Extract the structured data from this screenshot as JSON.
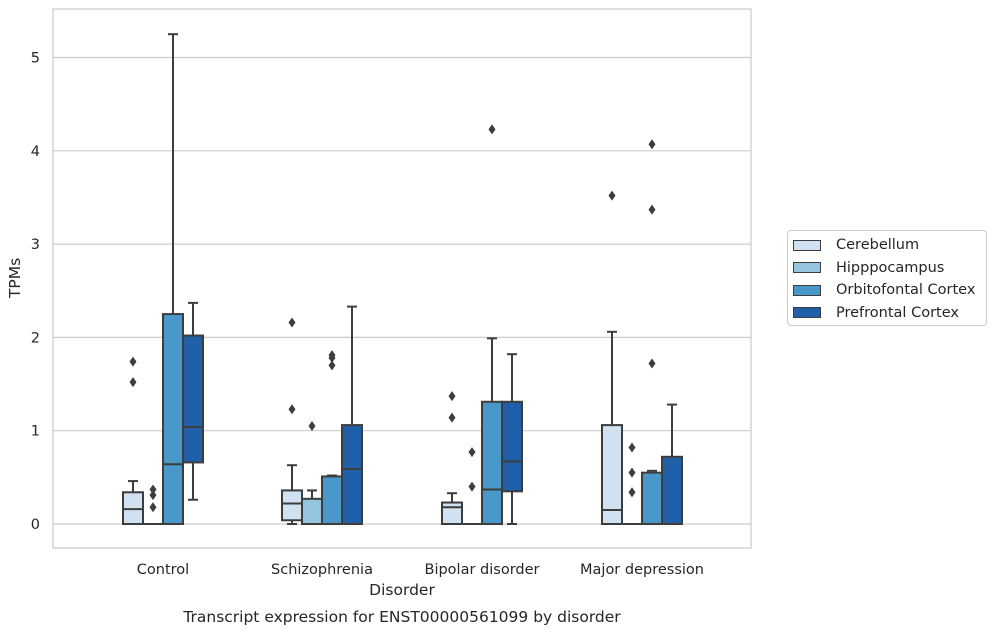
{
  "chart_data": {
    "type": "box",
    "title": "Transcript expression for ENST00000561099 by disorder",
    "xlabel": "Disorder",
    "ylabel": "TPMs",
    "ylim": [
      -0.25,
      5.5
    ],
    "yticks": [
      0,
      1,
      2,
      3,
      4,
      5
    ],
    "ytick_labels": [
      "0",
      "1",
      "2",
      "3",
      "4",
      "5"
    ],
    "grid": "horizontal",
    "legend_position": "right, outside plot",
    "categories": [
      "Control",
      "Schizophrenia",
      "Bipolar disorder",
      "Major depression"
    ],
    "series": [
      {
        "name": "Cerebellum",
        "color": "#d0e1f2",
        "boxes": [
          {
            "category": "Control",
            "whisker_low": 0.0,
            "q1": 0.0,
            "median": 0.16,
            "q3": 0.34,
            "whisker_high": 0.46,
            "outliers": [
              1.52,
              1.74
            ]
          },
          {
            "category": "Schizophrenia",
            "whisker_low": 0.0,
            "q1": 0.04,
            "median": 0.22,
            "q3": 0.36,
            "whisker_high": 0.63,
            "outliers": [
              1.23,
              2.16
            ]
          },
          {
            "category": "Bipolar disorder",
            "whisker_low": 0.0,
            "q1": 0.0,
            "median": 0.18,
            "q3": 0.23,
            "whisker_high": 0.33,
            "outliers": [
              1.14,
              1.37
            ]
          },
          {
            "category": "Major depression",
            "whisker_low": 0.0,
            "q1": 0.0,
            "median": 0.15,
            "q3": 1.06,
            "whisker_high": 2.06,
            "outliers": [
              3.52
            ]
          }
        ]
      },
      {
        "name": "Hipppocampus",
        "color": "#94c4df",
        "boxes": [
          {
            "category": "Control",
            "whisker_low": 0.0,
            "q1": 0.0,
            "median": 0.0,
            "q3": 0.0,
            "whisker_high": 0.0,
            "outliers": [
              0.18,
              0.31,
              0.37
            ]
          },
          {
            "category": "Schizophrenia",
            "whisker_low": 0.0,
            "q1": 0.0,
            "median": 0.0,
            "q3": 0.27,
            "whisker_high": 0.36,
            "outliers": [
              1.05
            ]
          },
          {
            "category": "Bipolar disorder",
            "whisker_low": 0.0,
            "q1": 0.0,
            "median": 0.0,
            "q3": 0.0,
            "whisker_high": 0.0,
            "outliers": [
              0.4,
              0.77
            ]
          },
          {
            "category": "Major depression",
            "whisker_low": 0.0,
            "q1": 0.0,
            "median": 0.0,
            "q3": 0.0,
            "whisker_high": 0.0,
            "outliers": [
              0.34,
              0.55,
              0.82
            ]
          }
        ]
      },
      {
        "name": "Orbitofontal Cortex",
        "color": "#4a98c9",
        "boxes": [
          {
            "category": "Control",
            "whisker_low": 0.0,
            "q1": 0.0,
            "median": 0.64,
            "q3": 2.25,
            "whisker_high": 5.25,
            "outliers": []
          },
          {
            "category": "Schizophrenia",
            "whisker_low": 0.0,
            "q1": 0.0,
            "median": 0.0,
            "q3": 0.51,
            "whisker_high": 0.52,
            "outliers": [
              1.7,
              1.78,
              1.81
            ]
          },
          {
            "category": "Bipolar disorder",
            "whisker_low": 0.0,
            "q1": 0.0,
            "median": 0.37,
            "q3": 1.31,
            "whisker_high": 1.99,
            "outliers": [
              4.23
            ]
          },
          {
            "category": "Major depression",
            "whisker_low": 0.0,
            "q1": 0.0,
            "median": 0.0,
            "q3": 0.55,
            "whisker_high": 0.57,
            "outliers": [
              1.72,
              3.37,
              4.07
            ]
          }
        ]
      },
      {
        "name": "Prefrontal Cortex",
        "color": "#2060a8",
        "boxes": [
          {
            "category": "Control",
            "whisker_low": 0.26,
            "q1": 0.66,
            "median": 1.04,
            "q3": 2.02,
            "whisker_high": 2.37,
            "outliers": []
          },
          {
            "category": "Schizophrenia",
            "whisker_low": 0.0,
            "q1": 0.0,
            "median": 0.59,
            "q3": 1.06,
            "whisker_high": 2.33,
            "outliers": []
          },
          {
            "category": "Bipolar disorder",
            "whisker_low": 0.0,
            "q1": 0.35,
            "median": 0.67,
            "q3": 1.31,
            "whisker_high": 1.82,
            "outliers": []
          },
          {
            "category": "Major depression",
            "whisker_low": 0.0,
            "q1": 0.0,
            "median": 0.0,
            "q3": 0.72,
            "whisker_high": 1.28,
            "outliers": []
          }
        ]
      }
    ]
  }
}
